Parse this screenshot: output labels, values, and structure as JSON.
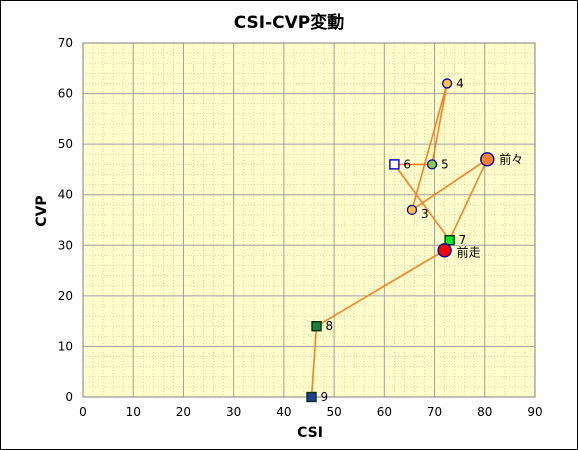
{
  "chart_data": {
    "type": "scatter",
    "title": "CSI-CVP変動",
    "xlabel": "CSI",
    "ylabel": "CVP",
    "xlim": [
      0,
      90
    ],
    "ylim": [
      0,
      70
    ],
    "xticks": [
      "0",
      "10",
      "20",
      "30",
      "40",
      "50",
      "60",
      "70",
      "80",
      "90"
    ],
    "yticks": [
      "0",
      "10",
      "20",
      "30",
      "40",
      "50",
      "60",
      "70"
    ],
    "grid": true,
    "plot_background": "#ffffcc",
    "grid_color": "#a0a0a0",
    "line_color": "#ff7f1e",
    "points": [
      {
        "label": "9",
        "x": 45.5,
        "y": 0,
        "marker": "square",
        "fill": "#1f3f9f",
        "stroke": "#003300"
      },
      {
        "label": "8",
        "x": 46.5,
        "y": 14,
        "marker": "square",
        "fill": "#1f7f3f",
        "stroke": "#003300"
      },
      {
        "label": "7",
        "x": 73,
        "y": 31,
        "marker": "square",
        "fill": "#00ee22",
        "stroke": "#003300"
      },
      {
        "label": "6",
        "x": 62,
        "y": 46,
        "marker": "square",
        "fill": "#ffffff",
        "stroke": "#0000cc"
      },
      {
        "label": "5",
        "x": 69.5,
        "y": 46,
        "marker": "circle",
        "fill": "#88cc44",
        "stroke": "#0000aa"
      },
      {
        "label": "4",
        "x": 72.5,
        "y": 62,
        "marker": "circle",
        "fill": "#ffc040",
        "stroke": "#0000aa"
      },
      {
        "label": "3",
        "x": 65.5,
        "y": 37,
        "marker": "circle",
        "fill": "#ffc040",
        "stroke": "#0000aa"
      },
      {
        "label": "前々",
        "x": 80.5,
        "y": 47,
        "marker": "big-circle",
        "fill": "#ff7f2a",
        "stroke": "#0000aa"
      },
      {
        "label": "前走",
        "x": 72,
        "y": 29,
        "marker": "big-circle",
        "fill": "#ff0000",
        "stroke": "#0000aa"
      }
    ],
    "path_order": [
      "9",
      "8",
      "前走",
      "前々",
      "3",
      "4",
      "5",
      "6",
      "7"
    ]
  }
}
